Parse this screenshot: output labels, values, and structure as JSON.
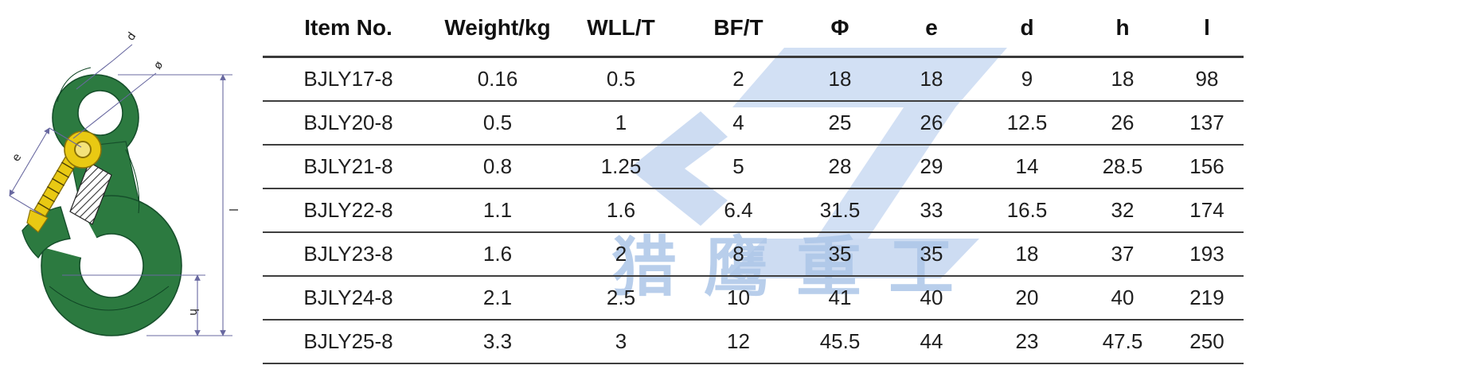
{
  "diagram": {
    "description": "technical drawing of green eye sling hook with yellow safety latch",
    "labels": {
      "d": "d",
      "phi": "ø",
      "e": "e",
      "l": "l",
      "h": "h"
    },
    "colors": {
      "hook_green": "#2c7a40",
      "hook_outline": "#164f2b",
      "latch_yellow": "#e9c913",
      "dimension_line": "#6868a0",
      "watermark_blue": "#abc5e7"
    }
  },
  "watermark": {
    "text": "猎鹰重工"
  },
  "table": {
    "columns": [
      "Item No.",
      "Weight/kg",
      "WLL/T",
      "BF/T",
      "Φ",
      "e",
      "d",
      "h",
      "l"
    ],
    "rows": [
      [
        "BJLY17-8",
        "0.16",
        "0.5",
        "2",
        "18",
        "18",
        "9",
        "18",
        "98"
      ],
      [
        "BJLY20-8",
        "0.5",
        "1",
        "4",
        "25",
        "26",
        "12.5",
        "26",
        "137"
      ],
      [
        "BJLY21-8",
        "0.8",
        "1.25",
        "5",
        "28",
        "29",
        "14",
        "28.5",
        "156"
      ],
      [
        "BJLY22-8",
        "1.1",
        "1.6",
        "6.4",
        "31.5",
        "33",
        "16.5",
        "32",
        "174"
      ],
      [
        "BJLY23-8",
        "1.6",
        "2",
        "8",
        "35",
        "35",
        "18",
        "37",
        "193"
      ],
      [
        "BJLY24-8",
        "2.1",
        "2.5",
        "10",
        "41",
        "40",
        "20",
        "40",
        "219"
      ],
      [
        "BJLY25-8",
        "3.3",
        "3",
        "12",
        "45.5",
        "44",
        "23",
        "47.5",
        "250"
      ]
    ]
  }
}
